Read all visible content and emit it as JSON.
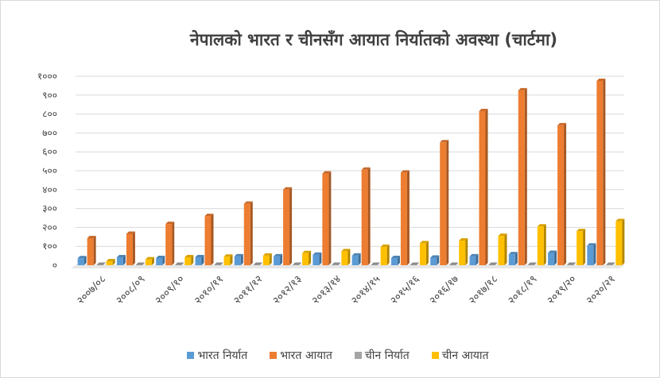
{
  "chart_data": {
    "type": "bar",
    "title": "नेपालको भारत र चीनसँग आयात निर्यातको अवस्था (चार्टमा)",
    "categories": [
      "२००७/०८",
      "२००८/०९",
      "२००९/१०",
      "२०१०/११",
      "२०११/१२",
      "२०१२/१३",
      "२०१३/१४",
      "२०१४/१५",
      "२०१५/१६",
      "२०१६/१७",
      "२०१७/१८",
      "२०१८/१९",
      "२०१९/२०",
      "२०२०/२१"
    ],
    "y_ticks": [
      "०",
      "१००",
      "२००",
      "३००",
      "४००",
      "५००",
      "६००",
      "७००",
      "८००",
      "९००",
      "१०००"
    ],
    "ylim": [
      0,
      1000
    ],
    "series": [
      {
        "name": "भारत निर्यात",
        "color": "#5b9bd5",
        "values": [
          37,
          42,
          38,
          42,
          47,
          47,
          55,
          51,
          38,
          40,
          47,
          58,
          65,
          104
        ]
      },
      {
        "name": "भारत आयात",
        "color": "#ed7d31",
        "values": [
          143,
          166,
          218,
          260,
          325,
          400,
          485,
          505,
          490,
          650,
          815,
          925,
          740,
          975
        ]
      },
      {
        "name": "चीन निर्यात",
        "color": "#a5a5a5",
        "values": [
          2,
          2,
          2,
          2,
          2,
          2,
          2,
          2,
          2,
          2,
          2,
          2,
          2,
          2
        ]
      },
      {
        "name": "चीन आयात",
        "color": "#ffc000",
        "values": [
          21,
          31,
          42,
          45,
          51,
          64,
          74,
          97,
          116,
          130,
          155,
          205,
          180,
          233
        ]
      }
    ],
    "legend_position": "bottom",
    "grid": true
  }
}
